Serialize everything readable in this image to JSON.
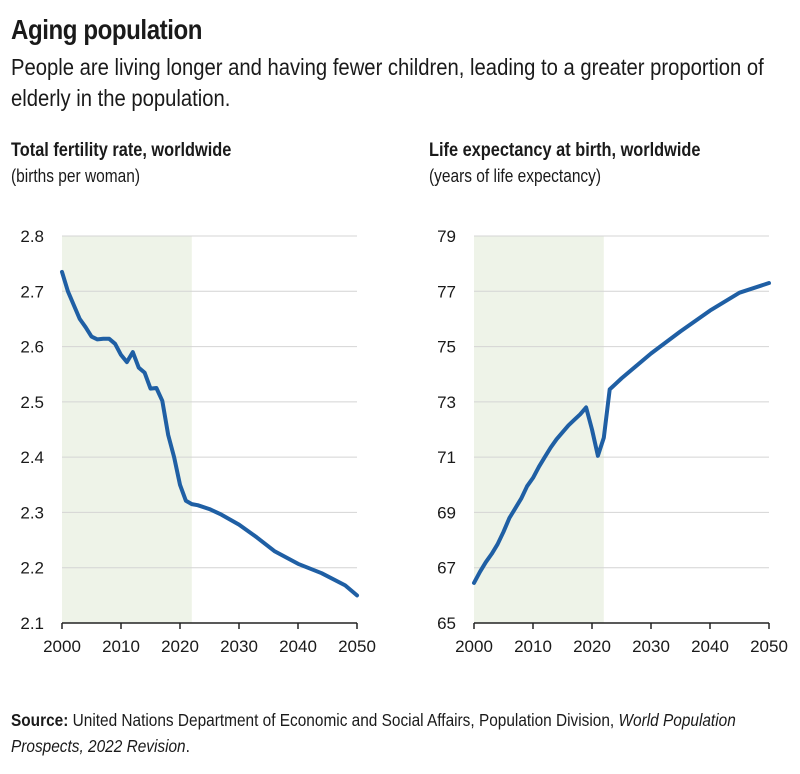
{
  "header": {
    "title": "Aging population",
    "subtitle": "People are living longer and having fewer children, leading to a greater proportion of elderly in the population."
  },
  "colors": {
    "line": "#1f5fa4",
    "shade": "#eef3e8",
    "grid": "#d4d4d4",
    "axis": "#222222"
  },
  "chart_data": [
    {
      "type": "line",
      "title": "Total fertility rate, worldwide",
      "subtitle": "(births per woman)",
      "xlim": [
        2000,
        2050
      ],
      "ylim": [
        2.1,
        2.8
      ],
      "xticks": [
        "2000",
        "2010",
        "2020",
        "2030",
        "2040",
        "2050"
      ],
      "yticks": [
        "2.8",
        "2.7",
        "2.6",
        "2.5",
        "2.4",
        "2.3",
        "2.2",
        "2.1"
      ],
      "grid": true,
      "shaded_range": [
        2000,
        2022
      ],
      "series": [
        {
          "x": [
            2000,
            2001,
            2002,
            2003,
            2004,
            2005,
            2006,
            2007,
            2008,
            2009,
            2010,
            2011,
            2012,
            2013,
            2014,
            2015,
            2016,
            2017,
            2018,
            2019,
            2020,
            2021,
            2022,
            2023,
            2025,
            2027,
            2030,
            2033,
            2036,
            2040,
            2044,
            2048,
            2050
          ],
          "y": [
            2.735,
            2.7,
            2.675,
            2.65,
            2.635,
            2.618,
            2.613,
            2.614,
            2.614,
            2.605,
            2.585,
            2.572,
            2.59,
            2.562,
            2.553,
            2.524,
            2.525,
            2.502,
            2.44,
            2.4,
            2.35,
            2.321,
            2.315,
            2.313,
            2.306,
            2.296,
            2.278,
            2.255,
            2.23,
            2.207,
            2.19,
            2.168,
            2.15
          ]
        }
      ]
    },
    {
      "type": "line",
      "title": "Life expectancy at birth, worldwide",
      "subtitle": "(years of life expectancy)",
      "xlim": [
        2000,
        2050
      ],
      "ylim": [
        65,
        79
      ],
      "xticks": [
        "2000",
        "2010",
        "2020",
        "2030",
        "2040",
        "2050"
      ],
      "yticks": [
        "79",
        "77",
        "75",
        "73",
        "71",
        "69",
        "67",
        "65"
      ],
      "grid": true,
      "shaded_range": [
        2000,
        2022
      ],
      "series": [
        {
          "x": [
            2000,
            2001,
            2002,
            2003,
            2004,
            2005,
            2006,
            2007,
            2008,
            2009,
            2010,
            2011,
            2012,
            2013,
            2014,
            2015,
            2016,
            2017,
            2018,
            2019,
            2020,
            2021,
            2022,
            2023,
            2025,
            2030,
            2035,
            2040,
            2045,
            2050
          ],
          "y": [
            66.45,
            66.85,
            67.2,
            67.5,
            67.85,
            68.3,
            68.8,
            69.15,
            69.5,
            69.95,
            70.25,
            70.65,
            71.0,
            71.35,
            71.65,
            71.9,
            72.15,
            72.35,
            72.55,
            72.8,
            72.0,
            71.05,
            71.7,
            73.45,
            73.85,
            74.75,
            75.55,
            76.3,
            76.95,
            77.3
          ]
        }
      ]
    }
  ],
  "source": {
    "label": "Source:",
    "text": "United Nations Department of Economic and Social Affairs, Population Division,",
    "publication": "World Population Prospects, 2022 Revision",
    "end": "."
  }
}
